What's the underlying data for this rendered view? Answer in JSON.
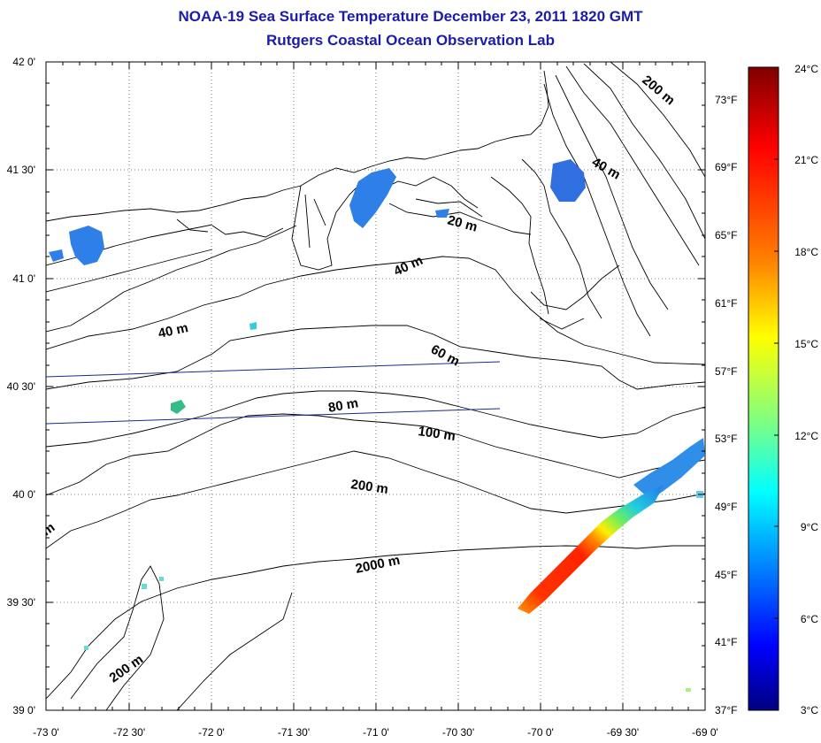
{
  "header": {
    "title": "NOAA-19 Sea Surface Temperature December 23, 2011 1820 GMT",
    "subtitle": "Rutgers Coastal Ocean Observation Lab"
  },
  "axes": {
    "lon_labels": [
      "-73 0'",
      "-72 30'",
      "-72 0'",
      "-71 30'",
      "-71 0'",
      "-70 30'",
      "-70 0'",
      "-69 30'",
      "-69 0'"
    ],
    "lat_labels": [
      "42 0'",
      "41 30'",
      "41 0'",
      "40 30'",
      "40 0'",
      "39 30'",
      "39 0'"
    ]
  },
  "contours": [
    "200 m",
    "40 m",
    "20 m",
    "40 m",
    "40 m",
    "60 m",
    "80 m",
    "100 m",
    "200 m",
    "2000 m",
    "200 m",
    "m"
  ],
  "colorbar": {
    "celsius": [
      "24°C",
      "21°C",
      "18°C",
      "15°C",
      "12°C",
      "9°C",
      "6°C",
      "3°C"
    ],
    "fahrenheit": [
      "73°F",
      "69°F",
      "65°F",
      "61°F",
      "57°F",
      "53°F",
      "49°F",
      "45°F",
      "41°F",
      "37°F"
    ],
    "colors": [
      "#7f0000",
      "#ff0000",
      "#ff8000",
      "#ffff00",
      "#80ff80",
      "#00ffff",
      "#0080ff",
      "#0000ff",
      "#00007f"
    ]
  }
}
